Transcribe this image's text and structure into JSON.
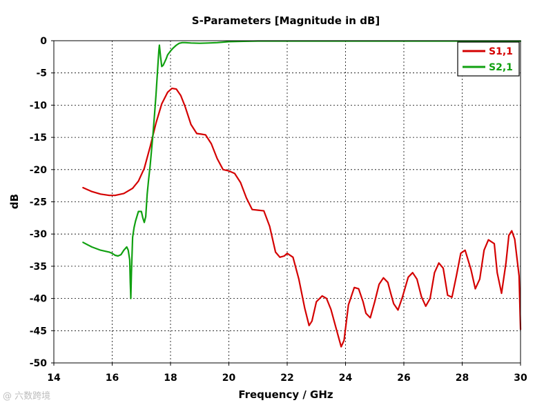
{
  "chart_data": {
    "type": "line",
    "title": "S-Parameters [Magnitude in dB]",
    "xlabel": "Frequency / GHz",
    "ylabel": "dB",
    "xlim": [
      14,
      30
    ],
    "ylim": [
      -50,
      0
    ],
    "x_ticks": [
      14,
      16,
      18,
      20,
      22,
      24,
      26,
      28,
      30
    ],
    "y_ticks": [
      0,
      -5,
      -10,
      -15,
      -20,
      -25,
      -30,
      -35,
      -40,
      -45,
      -50
    ],
    "grid": true,
    "legend_position": "top-right",
    "series": [
      {
        "name": "S1,1",
        "color": "#d40000",
        "x": [
          15.0,
          15.3,
          15.6,
          15.9,
          16.1,
          16.4,
          16.7,
          16.9,
          17.1,
          17.3,
          17.5,
          17.7,
          17.9,
          18.05,
          18.2,
          18.35,
          18.5,
          18.7,
          18.9,
          19.05,
          19.2,
          19.4,
          19.6,
          19.8,
          20.0,
          20.2,
          20.4,
          20.6,
          20.8,
          21.0,
          21.2,
          21.4,
          21.6,
          21.75,
          21.9,
          22.0,
          22.2,
          22.4,
          22.6,
          22.75,
          22.85,
          23.0,
          23.2,
          23.35,
          23.5,
          23.7,
          23.85,
          23.95,
          24.1,
          24.3,
          24.45,
          24.6,
          24.7,
          24.85,
          25.0,
          25.15,
          25.3,
          25.45,
          25.55,
          25.65,
          25.8,
          25.95,
          26.15,
          26.3,
          26.45,
          26.6,
          26.75,
          26.9,
          27.05,
          27.2,
          27.35,
          27.5,
          27.65,
          27.8,
          27.95,
          28.1,
          28.3,
          28.45,
          28.6,
          28.75,
          28.9,
          29.1,
          29.2,
          29.35,
          29.5,
          29.6,
          29.7,
          29.8,
          29.95,
          30.0
        ],
        "values": [
          -22.8,
          -23.4,
          -23.8,
          -24.0,
          -24.0,
          -23.7,
          -22.9,
          -21.8,
          -19.8,
          -16.5,
          -12.8,
          -9.8,
          -8.0,
          -7.4,
          -7.5,
          -8.5,
          -10.2,
          -13.0,
          -14.4,
          -14.5,
          -14.6,
          -16.0,
          -18.3,
          -20.0,
          -20.2,
          -20.6,
          -22.0,
          -24.4,
          -26.2,
          -26.3,
          -26.4,
          -28.8,
          -32.8,
          -33.6,
          -33.4,
          -33.0,
          -33.6,
          -37.0,
          -41.5,
          -44.2,
          -43.5,
          -40.5,
          -39.6,
          -40.0,
          -41.7,
          -45.0,
          -47.5,
          -46.5,
          -41.0,
          -38.3,
          -38.5,
          -40.5,
          -42.3,
          -43.0,
          -40.5,
          -37.8,
          -36.8,
          -37.5,
          -39.2,
          -40.8,
          -41.8,
          -39.8,
          -36.7,
          -36.0,
          -37.0,
          -39.7,
          -41.2,
          -40.0,
          -36.0,
          -34.5,
          -35.3,
          -39.5,
          -39.8,
          -36.5,
          -33.0,
          -32.5,
          -35.5,
          -38.5,
          -37.0,
          -32.5,
          -30.9,
          -31.5,
          -36.0,
          -39.2,
          -34.5,
          -30.2,
          -29.5,
          -30.8,
          -36.5,
          -44.8
        ]
      },
      {
        "name": "S2,1",
        "color": "#10a010",
        "x": [
          15.0,
          15.3,
          15.6,
          15.9,
          16.0,
          16.1,
          16.2,
          16.3,
          16.4,
          16.5,
          16.55,
          16.6,
          16.62,
          16.64,
          16.66,
          16.7,
          16.75,
          16.8,
          16.9,
          17.0,
          17.05,
          17.1,
          17.15,
          17.2,
          17.25,
          17.3,
          17.35,
          17.4,
          17.45,
          17.5,
          17.55,
          17.6,
          17.62,
          17.66,
          17.7,
          17.75,
          17.8,
          17.85,
          17.9,
          18.0,
          18.1,
          18.2,
          18.3,
          18.4,
          18.5,
          18.7,
          19.0,
          19.3,
          19.6,
          20.0,
          20.5,
          21.0,
          22.0,
          23.0,
          24.0,
          25.0,
          26.0,
          27.0,
          28.0,
          29.0,
          30.0
        ],
        "values": [
          -31.3,
          -32.0,
          -32.5,
          -32.8,
          -33.0,
          -33.3,
          -33.4,
          -33.2,
          -32.5,
          -32.0,
          -32.5,
          -34.0,
          -37.5,
          -40.0,
          -36.0,
          -30.5,
          -29.0,
          -28.0,
          -26.5,
          -26.5,
          -27.5,
          -28.2,
          -27.3,
          -23.8,
          -21.5,
          -19.5,
          -17.0,
          -14.5,
          -11.5,
          -8.5,
          -5.0,
          -1.5,
          -0.7,
          -2.5,
          -4.0,
          -3.8,
          -3.3,
          -2.8,
          -2.2,
          -1.6,
          -1.1,
          -0.7,
          -0.4,
          -0.3,
          -0.3,
          -0.35,
          -0.4,
          -0.35,
          -0.3,
          -0.15,
          -0.1,
          -0.05,
          -0.05,
          -0.05,
          -0.05,
          -0.05,
          -0.05,
          -0.05,
          -0.05,
          -0.05,
          -0.05
        ]
      }
    ]
  },
  "watermark": "@ 六数跨境"
}
